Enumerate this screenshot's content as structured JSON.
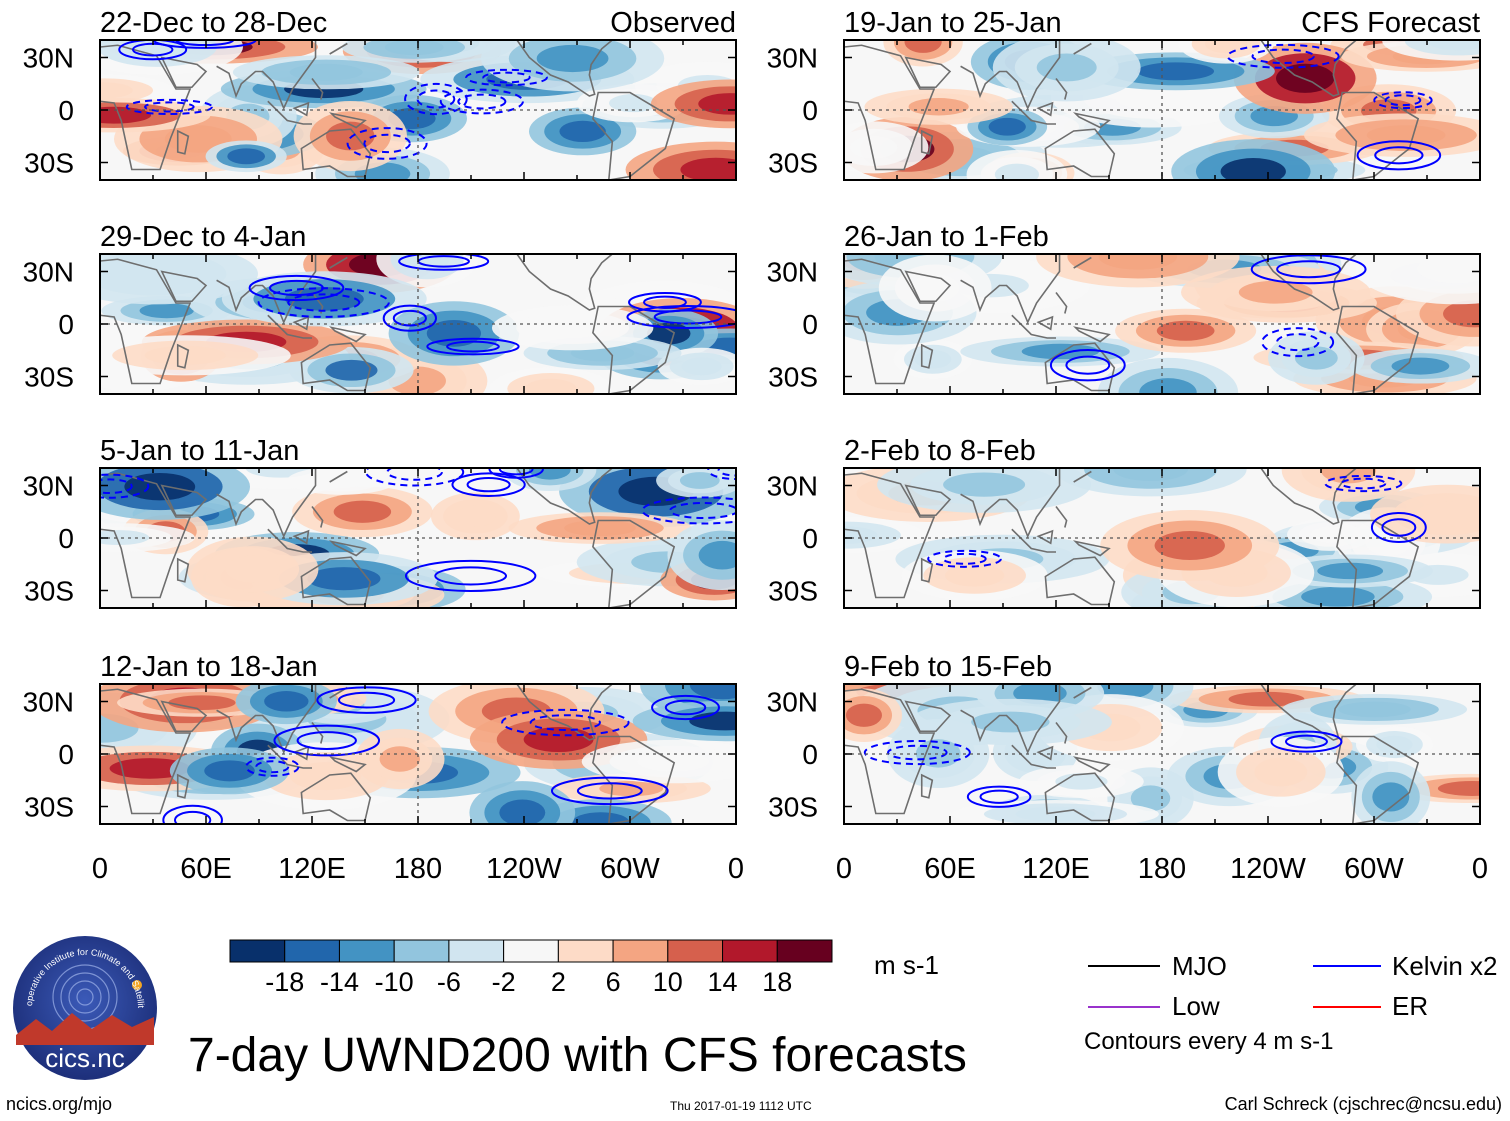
{
  "title": "7-day UWND200 with CFS forecasts",
  "columns": {
    "left": {
      "label": "Observed"
    },
    "right": {
      "label": "CFS Forecast"
    }
  },
  "chart_data": [
    {
      "type": "heatmap",
      "panel": "observed-1",
      "title": "22-Dec to 28-Dec",
      "variable": "200-hPa zonal wind anomaly",
      "x_ticks": [
        "0",
        "60E",
        "120E",
        "180",
        "120W",
        "60W",
        "0"
      ],
      "y_ticks": [
        "30N",
        "0",
        "30S"
      ],
      "xlim": [
        0,
        360
      ],
      "ylim": [
        -40,
        40
      ],
      "units": "m s-1"
    },
    {
      "type": "heatmap",
      "panel": "observed-2",
      "title": "29-Dec to 4-Jan",
      "variable": "200-hPa zonal wind anomaly",
      "x_ticks": [
        "0",
        "60E",
        "120E",
        "180",
        "120W",
        "60W",
        "0"
      ],
      "y_ticks": [
        "30N",
        "0",
        "30S"
      ],
      "xlim": [
        0,
        360
      ],
      "ylim": [
        -40,
        40
      ],
      "units": "m s-1"
    },
    {
      "type": "heatmap",
      "panel": "observed-3",
      "title": "5-Jan to 11-Jan",
      "variable": "200-hPa zonal wind anomaly",
      "x_ticks": [
        "0",
        "60E",
        "120E",
        "180",
        "120W",
        "60W",
        "0"
      ],
      "y_ticks": [
        "30N",
        "0",
        "30S"
      ],
      "xlim": [
        0,
        360
      ],
      "ylim": [
        -40,
        40
      ],
      "units": "m s-1"
    },
    {
      "type": "heatmap",
      "panel": "observed-4",
      "title": "12-Jan to 18-Jan",
      "variable": "200-hPa zonal wind anomaly",
      "x_ticks": [
        "0",
        "60E",
        "120E",
        "180",
        "120W",
        "60W",
        "0"
      ],
      "y_ticks": [
        "30N",
        "0",
        "30S"
      ],
      "xlim": [
        0,
        360
      ],
      "ylim": [
        -40,
        40
      ],
      "units": "m s-1"
    },
    {
      "type": "heatmap",
      "panel": "forecast-1",
      "title": "19-Jan to 25-Jan",
      "variable": "200-hPa zonal wind anomaly",
      "x_ticks": [
        "0",
        "60E",
        "120E",
        "180",
        "120W",
        "60W",
        "0"
      ],
      "y_ticks": [
        "30N",
        "0",
        "30S"
      ],
      "xlim": [
        0,
        360
      ],
      "ylim": [
        -40,
        40
      ],
      "units": "m s-1"
    },
    {
      "type": "heatmap",
      "panel": "forecast-2",
      "title": "26-Jan to 1-Feb",
      "variable": "200-hPa zonal wind anomaly",
      "x_ticks": [
        "0",
        "60E",
        "120E",
        "180",
        "120W",
        "60W",
        "0"
      ],
      "y_ticks": [
        "30N",
        "0",
        "30S"
      ],
      "xlim": [
        0,
        360
      ],
      "ylim": [
        -40,
        40
      ],
      "units": "m s-1"
    },
    {
      "type": "heatmap",
      "panel": "forecast-3",
      "title": "2-Feb to 8-Feb",
      "variable": "200-hPa zonal wind anomaly",
      "x_ticks": [
        "0",
        "60E",
        "120E",
        "180",
        "120W",
        "60W",
        "0"
      ],
      "y_ticks": [
        "30N",
        "0",
        "30S"
      ],
      "xlim": [
        0,
        360
      ],
      "ylim": [
        -40,
        40
      ],
      "units": "m s-1"
    },
    {
      "type": "heatmap",
      "panel": "forecast-4",
      "title": "9-Feb to 15-Feb",
      "variable": "200-hPa zonal wind anomaly",
      "x_ticks": [
        "0",
        "60E",
        "120E",
        "180",
        "120W",
        "60W",
        "0"
      ],
      "y_ticks": [
        "30N",
        "0",
        "30S"
      ],
      "xlim": [
        0,
        360
      ],
      "ylim": [
        -40,
        40
      ],
      "units": "m s-1"
    }
  ],
  "colorbar": {
    "units": "m s-1",
    "tick_labels": [
      "-18",
      "-14",
      "-10",
      "-6",
      "-2",
      "2",
      "6",
      "10",
      "14",
      "18"
    ],
    "colors": [
      "#08306b",
      "#2166ac",
      "#4393c3",
      "#92c5de",
      "#d1e5f0",
      "#f7f7f7",
      "#fddbc7",
      "#f4a582",
      "#d6604d",
      "#b2182b",
      "#67001f"
    ]
  },
  "legend": {
    "items": [
      {
        "label": "MJO",
        "color": "#000000"
      },
      {
        "label": "Kelvin x2",
        "color": "#0000ff"
      },
      {
        "label": "Low",
        "color": "#9932cc"
      },
      {
        "label": "ER",
        "color": "#ff0000"
      }
    ],
    "contour_note": "Contours every 4 m s-1"
  },
  "logo": {
    "org_text": "Cooperative Institute for Climate and Satellites",
    "brand": "cics.nc"
  },
  "footer": {
    "left": "ncics.org/mjo",
    "center": "Thu 2017-01-19 1112 UTC",
    "right": "Carl Schreck (cjschrec@ncsu.edu)"
  }
}
